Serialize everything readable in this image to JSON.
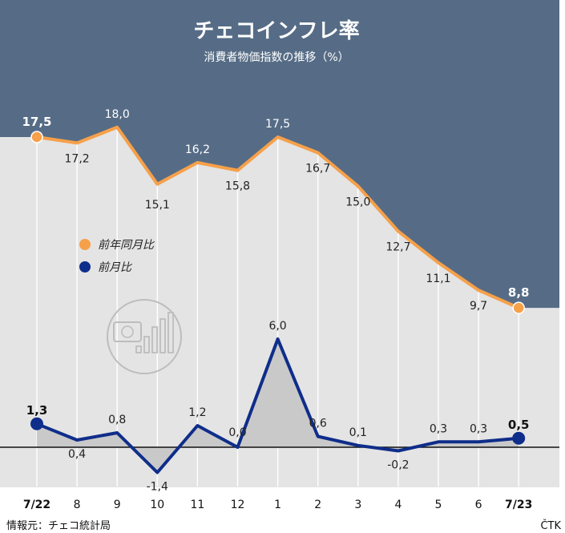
{
  "header": {
    "title": "チェコインフレ率",
    "subtitle": "消費者物価指数の推移（%）"
  },
  "footer": {
    "source": "情報元：チェコ統計局",
    "credit": "ČTK"
  },
  "colors": {
    "header_bg": "#566c86",
    "plot_bg": "#e4e4e4",
    "yoy_line": "#f6a04a",
    "mom_line": "#0f2d8a",
    "mom_area": "#c9c9c9",
    "gridline": "#ffffff"
  },
  "icon": "czk-bar-chart-icon",
  "chart_data": {
    "type": "line",
    "categories": [
      "7/22",
      "8",
      "9",
      "10",
      "11",
      "12",
      "1",
      "2",
      "3",
      "4",
      "5",
      "6",
      "7/23"
    ],
    "bold_categories": [
      "7/22",
      "7/23"
    ],
    "legend_position": "middle-left",
    "grid": "vertical",
    "series": [
      {
        "name": "前年同月比",
        "values": [
          17.5,
          17.2,
          18.0,
          15.1,
          16.2,
          15.8,
          17.5,
          16.7,
          15.0,
          12.7,
          11.1,
          9.7,
          8.8
        ],
        "labels": [
          "17,5",
          "17,2",
          "18,0",
          "15,1",
          "16,2",
          "15,8",
          "17,5",
          "16,7",
          "15,0",
          "12,7",
          "11,1",
          "9,7",
          "8,8"
        ]
      },
      {
        "name": "前月比",
        "values": [
          1.3,
          0.4,
          0.8,
          -1.4,
          1.2,
          0.0,
          6.0,
          0.6,
          0.1,
          -0.2,
          0.3,
          0.3,
          0.5
        ],
        "labels": [
          "1,3",
          "0,4",
          "0,8",
          "-1,4",
          "1,2",
          "0,0",
          "6,0",
          "0,6",
          "0,1",
          "-0,2",
          "0,3",
          "0,3",
          "0,5"
        ]
      }
    ]
  }
}
